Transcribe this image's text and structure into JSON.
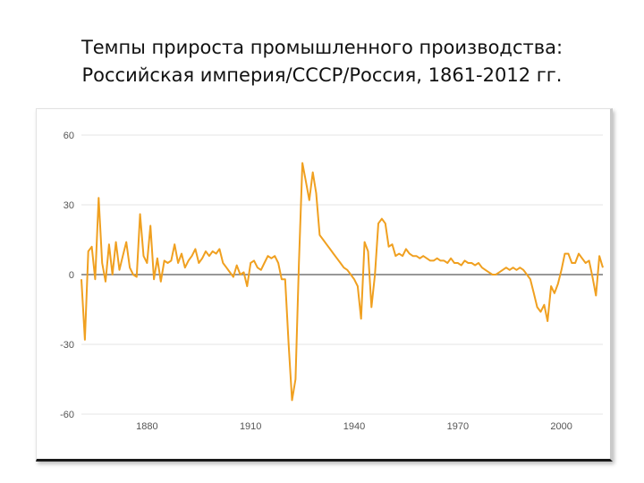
{
  "title": {
    "line1": "Темпы прироста промышленного производства:",
    "line2": "Российская империя/СССР/Россия, 1861-2012 гг."
  },
  "colors": {
    "series": "#f0a020",
    "zero_line": "#777777",
    "grid": "#e6e6e6",
    "axis_text": "#555555"
  },
  "chart_data": {
    "type": "line",
    "title": "Темпы прироста промышленного производства: Российская империя/СССР/Россия, 1861-2012 гг.",
    "xlabel": "",
    "ylabel": "",
    "xlim": [
      1861,
      2012
    ],
    "ylim": [
      -60,
      60
    ],
    "x_ticks": [
      "1880",
      "1910",
      "1940",
      "1970",
      "2000"
    ],
    "y_ticks": [
      "60",
      "30",
      "0",
      "-30",
      "-60"
    ],
    "grid": "horizontal",
    "legend": "none",
    "series": [
      {
        "points": [
          [
            1861,
            -2
          ],
          [
            1862,
            -28
          ],
          [
            1863,
            10
          ],
          [
            1864,
            12
          ],
          [
            1865,
            -2
          ],
          [
            1866,
            33
          ],
          [
            1867,
            5
          ],
          [
            1868,
            -3
          ],
          [
            1869,
            13
          ],
          [
            1870,
            0
          ],
          [
            1871,
            14
          ],
          [
            1872,
            2
          ],
          [
            1873,
            8
          ],
          [
            1874,
            14
          ],
          [
            1875,
            3
          ],
          [
            1876,
            0
          ],
          [
            1877,
            -1
          ],
          [
            1878,
            26
          ],
          [
            1879,
            8
          ],
          [
            1880,
            5
          ],
          [
            1881,
            21
          ],
          [
            1882,
            -2
          ],
          [
            1883,
            7
          ],
          [
            1884,
            -3
          ],
          [
            1885,
            6
          ],
          [
            1886,
            5
          ],
          [
            1887,
            6
          ],
          [
            1888,
            13
          ],
          [
            1889,
            5
          ],
          [
            1890,
            9
          ],
          [
            1891,
            3
          ],
          [
            1892,
            6
          ],
          [
            1893,
            8
          ],
          [
            1894,
            11
          ],
          [
            1895,
            5
          ],
          [
            1896,
            7
          ],
          [
            1897,
            10
          ],
          [
            1898,
            8
          ],
          [
            1899,
            10
          ],
          [
            1900,
            9
          ],
          [
            1901,
            11
          ],
          [
            1902,
            5
          ],
          [
            1903,
            3
          ],
          [
            1904,
            1
          ],
          [
            1905,
            -1
          ],
          [
            1906,
            4
          ],
          [
            1907,
            0
          ],
          [
            1908,
            1
          ],
          [
            1909,
            -5
          ],
          [
            1910,
            5
          ],
          [
            1911,
            6
          ],
          [
            1912,
            3
          ],
          [
            1913,
            2
          ],
          [
            1914,
            5
          ],
          [
            1915,
            8
          ],
          [
            1916,
            7
          ],
          [
            1917,
            8
          ],
          [
            1918,
            5
          ],
          [
            1919,
            -2
          ],
          [
            1920,
            -2
          ],
          [
            1921,
            -30
          ],
          [
            1922,
            -54
          ],
          [
            1923,
            -45
          ],
          [
            1924,
            5
          ],
          [
            1925,
            48
          ],
          [
            1926,
            40
          ],
          [
            1927,
            32
          ],
          [
            1928,
            44
          ],
          [
            1929,
            35
          ],
          [
            1930,
            17
          ],
          [
            1931,
            15
          ],
          [
            1932,
            13
          ],
          [
            1933,
            11
          ],
          [
            1934,
            9
          ],
          [
            1935,
            7
          ],
          [
            1936,
            5
          ],
          [
            1937,
            3
          ],
          [
            1938,
            2
          ],
          [
            1939,
            0
          ],
          [
            1940,
            -2
          ],
          [
            1941,
            -5
          ],
          [
            1942,
            -19
          ],
          [
            1943,
            14
          ],
          [
            1944,
            10
          ],
          [
            1945,
            -14
          ],
          [
            1946,
            0
          ],
          [
            1947,
            22
          ],
          [
            1948,
            24
          ],
          [
            1949,
            22
          ],
          [
            1950,
            12
          ],
          [
            1951,
            13
          ],
          [
            1952,
            8
          ],
          [
            1953,
            9
          ],
          [
            1954,
            8
          ],
          [
            1955,
            11
          ],
          [
            1956,
            9
          ],
          [
            1957,
            8
          ],
          [
            1958,
            8
          ],
          [
            1959,
            7
          ],
          [
            1960,
            8
          ],
          [
            1961,
            7
          ],
          [
            1962,
            6
          ],
          [
            1963,
            6
          ],
          [
            1964,
            7
          ],
          [
            1965,
            6
          ],
          [
            1966,
            6
          ],
          [
            1967,
            5
          ],
          [
            1968,
            7
          ],
          [
            1969,
            5
          ],
          [
            1970,
            5
          ],
          [
            1971,
            4
          ],
          [
            1972,
            6
          ],
          [
            1973,
            5
          ],
          [
            1974,
            5
          ],
          [
            1975,
            4
          ],
          [
            1976,
            5
          ],
          [
            1977,
            3
          ],
          [
            1978,
            2
          ],
          [
            1979,
            1
          ],
          [
            1980,
            0
          ],
          [
            1981,
            0
          ],
          [
            1982,
            1
          ],
          [
            1983,
            2
          ],
          [
            1984,
            3
          ],
          [
            1985,
            2
          ],
          [
            1986,
            3
          ],
          [
            1987,
            2
          ],
          [
            1988,
            3
          ],
          [
            1989,
            2
          ],
          [
            1990,
            0
          ],
          [
            1991,
            -2
          ],
          [
            1992,
            -8
          ],
          [
            1993,
            -14
          ],
          [
            1994,
            -16
          ],
          [
            1995,
            -13
          ],
          [
            1996,
            -20
          ],
          [
            1997,
            -5
          ],
          [
            1998,
            -8
          ],
          [
            1999,
            -4
          ],
          [
            2000,
            2
          ],
          [
            2001,
            9
          ],
          [
            2002,
            9
          ],
          [
            2003,
            5
          ],
          [
            2004,
            5
          ],
          [
            2005,
            9
          ],
          [
            2006,
            7
          ],
          [
            2007,
            5
          ],
          [
            2008,
            6
          ],
          [
            2009,
            -1
          ],
          [
            2010,
            -9
          ],
          [
            2011,
            8
          ],
          [
            2012,
            3
          ]
        ]
      }
    ]
  }
}
